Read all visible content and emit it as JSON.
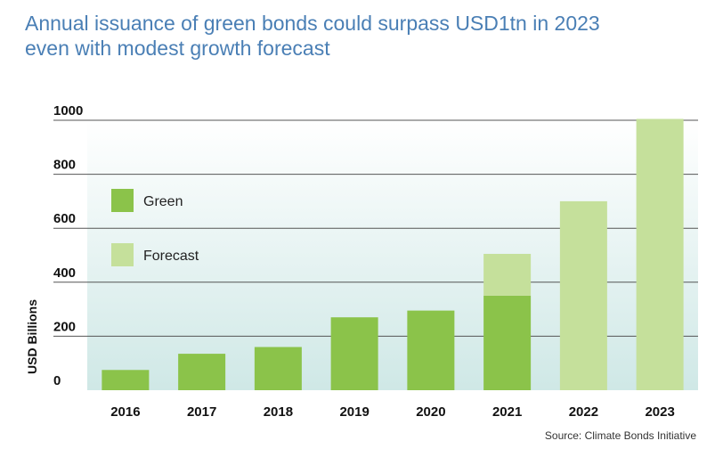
{
  "title_line1": "Annual issuance of green bonds could surpass USD1tn in 2023",
  "title_line2": "even with modest growth forecast",
  "source": "Source: Climate Bonds Initiative",
  "colors": {
    "title": "#4a7fb5",
    "green": "#8bc34a",
    "forecast": "#c5e09b",
    "bg_top": "#ffffff",
    "bg_bottom": "#cfe8e6"
  },
  "chart_data": {
    "type": "bar",
    "stacked": true,
    "categories": [
      "2016",
      "2017",
      "2018",
      "2019",
      "2020",
      "2021",
      "2022",
      "2023"
    ],
    "series": [
      {
        "name": "Green",
        "values": [
          75,
          135,
          160,
          270,
          295,
          350,
          0,
          0
        ]
      },
      {
        "name": "Forecast",
        "values": [
          0,
          0,
          0,
          0,
          0,
          155,
          700,
          1005
        ]
      }
    ],
    "ylabel": "USD Billions",
    "xlabel": "",
    "ylim": [
      0,
      1000
    ],
    "yticks": [
      0,
      200,
      400,
      600,
      800,
      1000
    ],
    "grid": true,
    "legend_position": "left"
  }
}
